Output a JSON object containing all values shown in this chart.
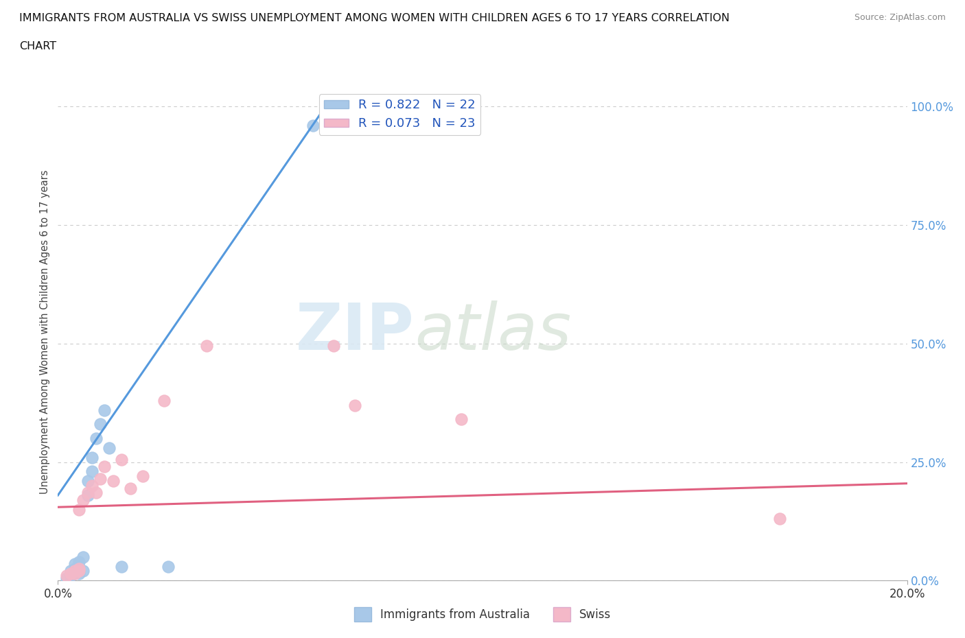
{
  "title_line1": "IMMIGRANTS FROM AUSTRALIA VS SWISS UNEMPLOYMENT AMONG WOMEN WITH CHILDREN AGES 6 TO 17 YEARS CORRELATION",
  "title_line2": "CHART",
  "source": "Source: ZipAtlas.com",
  "ylabel": "Unemployment Among Women with Children Ages 6 to 17 years",
  "xmin": 0.0,
  "xmax": 0.2,
  "ymin": 0.0,
  "ymax": 1.05,
  "xtick_positions": [
    0.0,
    0.2
  ],
  "xtick_labels": [
    "0.0%",
    "20.0%"
  ],
  "ytick_values": [
    0.0,
    0.25,
    0.5,
    0.75,
    1.0
  ],
  "ytick_labels": [
    "0.0%",
    "25.0%",
    "50.0%",
    "75.0%",
    "100.0%"
  ],
  "blue_R": 0.822,
  "blue_N": 22,
  "pink_R": 0.073,
  "pink_N": 23,
  "blue_color": "#a8c8e8",
  "pink_color": "#f4b8c8",
  "blue_line_color": "#5599dd",
  "pink_line_color": "#e06080",
  "legend_label_blue": "Immigrants from Australia",
  "legend_label_pink": "Swiss",
  "watermark_zip": "ZIP",
  "watermark_atlas": "atlas",
  "background_color": "#ffffff",
  "grid_color": "#cccccc",
  "blue_scatter_x": [
    0.002,
    0.003,
    0.003,
    0.004,
    0.004,
    0.004,
    0.005,
    0.005,
    0.005,
    0.006,
    0.006,
    0.007,
    0.007,
    0.008,
    0.008,
    0.009,
    0.01,
    0.011,
    0.012,
    0.015,
    0.026,
    0.06
  ],
  "blue_scatter_y": [
    0.005,
    0.01,
    0.02,
    0.015,
    0.025,
    0.035,
    0.015,
    0.02,
    0.04,
    0.02,
    0.05,
    0.18,
    0.21,
    0.23,
    0.26,
    0.3,
    0.33,
    0.36,
    0.28,
    0.03,
    0.03,
    0.96
  ],
  "pink_scatter_x": [
    0.002,
    0.003,
    0.004,
    0.004,
    0.005,
    0.005,
    0.005,
    0.006,
    0.007,
    0.008,
    0.009,
    0.01,
    0.011,
    0.013,
    0.015,
    0.017,
    0.02,
    0.025,
    0.035,
    0.065,
    0.07,
    0.095,
    0.17
  ],
  "pink_scatter_y": [
    0.01,
    0.015,
    0.02,
    0.015,
    0.02,
    0.025,
    0.15,
    0.17,
    0.185,
    0.2,
    0.185,
    0.215,
    0.24,
    0.21,
    0.255,
    0.195,
    0.22,
    0.38,
    0.495,
    0.495,
    0.37,
    0.34,
    0.13
  ],
  "blue_line_x0": 0.0,
  "blue_line_y0": 0.18,
  "blue_line_x1": 0.063,
  "blue_line_y1": 1.0,
  "pink_line_x0": 0.0,
  "pink_line_y0": 0.155,
  "pink_line_x1": 0.2,
  "pink_line_y1": 0.205
}
